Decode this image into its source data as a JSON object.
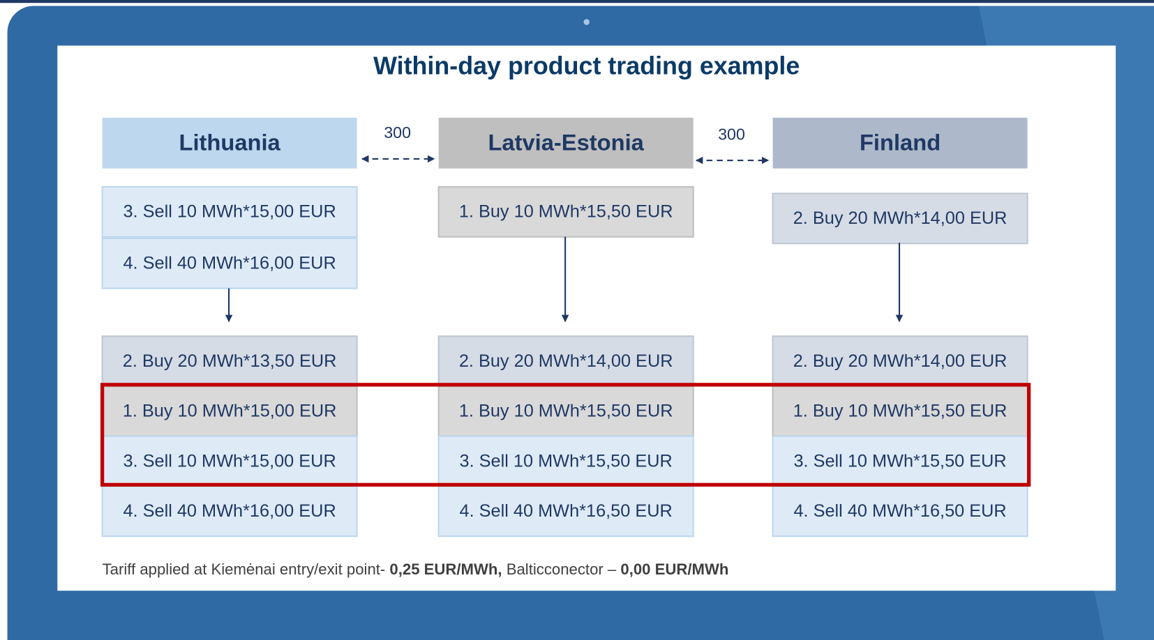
{
  "title": "Within-day product trading example",
  "connectors": [
    "300",
    "300"
  ],
  "columns": [
    {
      "header": "Lithuania",
      "top_orders": [
        "3. Sell 10 MWh*15,00 EUR",
        "4. Sell 40 MWh*16,00 EUR"
      ],
      "bottom_orders": [
        "2. Buy 20 MWh*13,50 EUR",
        "1. Buy 10 MWh*15,00 EUR",
        "3. Sell 10 MWh*15,00 EUR",
        "4. Sell 40 MWh*16,00 EUR"
      ]
    },
    {
      "header": "Latvia-Estonia",
      "top_orders": [
        "1. Buy 10 MWh*15,50 EUR"
      ],
      "bottom_orders": [
        "2. Buy 20 MWh*14,00 EUR",
        "1. Buy 10 MWh*15,50 EUR",
        "3. Sell 10 MWh*15,50 EUR",
        "4. Sell 40 MWh*16,50 EUR"
      ]
    },
    {
      "header": "Finland",
      "top_orders": [
        "2. Buy 20 MWh*14,00 EUR"
      ],
      "bottom_orders": [
        "2. Buy 20 MWh*14,00 EUR",
        "1. Buy 10 MWh*15,50 EUR",
        "3. Sell 10 MWh*15,50 EUR",
        "4. Sell 40 MWh*16,50 EUR"
      ]
    }
  ],
  "footer": {
    "segments": [
      {
        "text": "Tariff applied at Kiemėnai entry/exit point- ",
        "bold": false
      },
      {
        "text": "0,25 EUR/MWh,",
        "bold": true
      },
      {
        "text": " Balticconector – ",
        "bold": false
      },
      {
        "text": "0,00 EUR/MWh",
        "bold": true
      }
    ]
  }
}
